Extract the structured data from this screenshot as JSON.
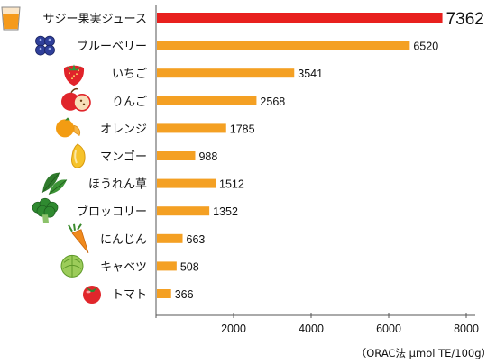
{
  "chart_data": {
    "type": "bar",
    "orientation": "horizontal",
    "title": "",
    "xlabel": "（ORAC法 μmol TE/100g）",
    "ylabel": "",
    "xlim": [
      0,
      8000
    ],
    "xticks": [
      0,
      2000,
      4000,
      6000,
      8000
    ],
    "xtick_labels": [
      "",
      "2000",
      "4000",
      "6000",
      "8000"
    ],
    "grid": false,
    "categories": [
      "サジー果実ジュース",
      "ブルーベリー",
      "いちご",
      "りんご",
      "オレンジ",
      "マンゴー",
      "ほうれん草",
      "ブロッコリー",
      "にんじん",
      "キャベツ",
      "トマト"
    ],
    "values": [
      7362,
      6520,
      3541,
      2568,
      1785,
      988,
      1512,
      1352,
      663,
      508,
      366
    ],
    "value_labels": [
      "7362",
      "6520",
      "3541",
      "2568",
      "1785",
      "988",
      "1512",
      "1352",
      "663",
      "508",
      "366"
    ],
    "icons": [
      "orange-juice-glass-icon",
      "blueberry-icon",
      "strawberry-icon",
      "apple-icon",
      "orange-fruit-icon",
      "mango-icon",
      "spinach-icon",
      "broccoli-icon",
      "carrot-icon",
      "cabbage-icon",
      "tomato-icon"
    ],
    "colors": {
      "highlight": "#e8201e",
      "bar": "#f4a023",
      "axis": "#555555"
    }
  }
}
